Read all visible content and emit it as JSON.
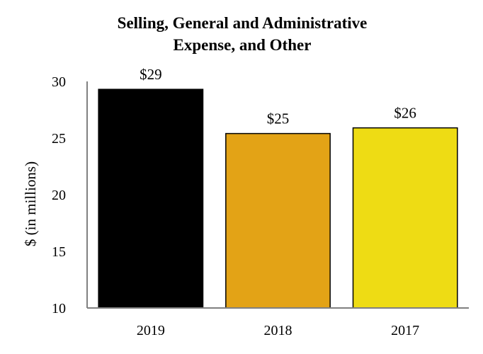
{
  "chart_data": {
    "type": "bar",
    "title_lines": [
      "Selling, General and Administrative",
      "Expense, and Other"
    ],
    "xlabel": "",
    "ylabel": "$ (in millions)",
    "categories": [
      "2019",
      "2018",
      "2017"
    ],
    "values": [
      29.3,
      25.4,
      25.9
    ],
    "data_labels": [
      "$29",
      "$25",
      "$26"
    ],
    "colors": [
      "#000000",
      "#e3a316",
      "#eedc14"
    ],
    "ylim": [
      10,
      30
    ],
    "yticks": [
      "10",
      "15",
      "20",
      "25",
      "30"
    ],
    "grid": false,
    "legend": "none"
  }
}
